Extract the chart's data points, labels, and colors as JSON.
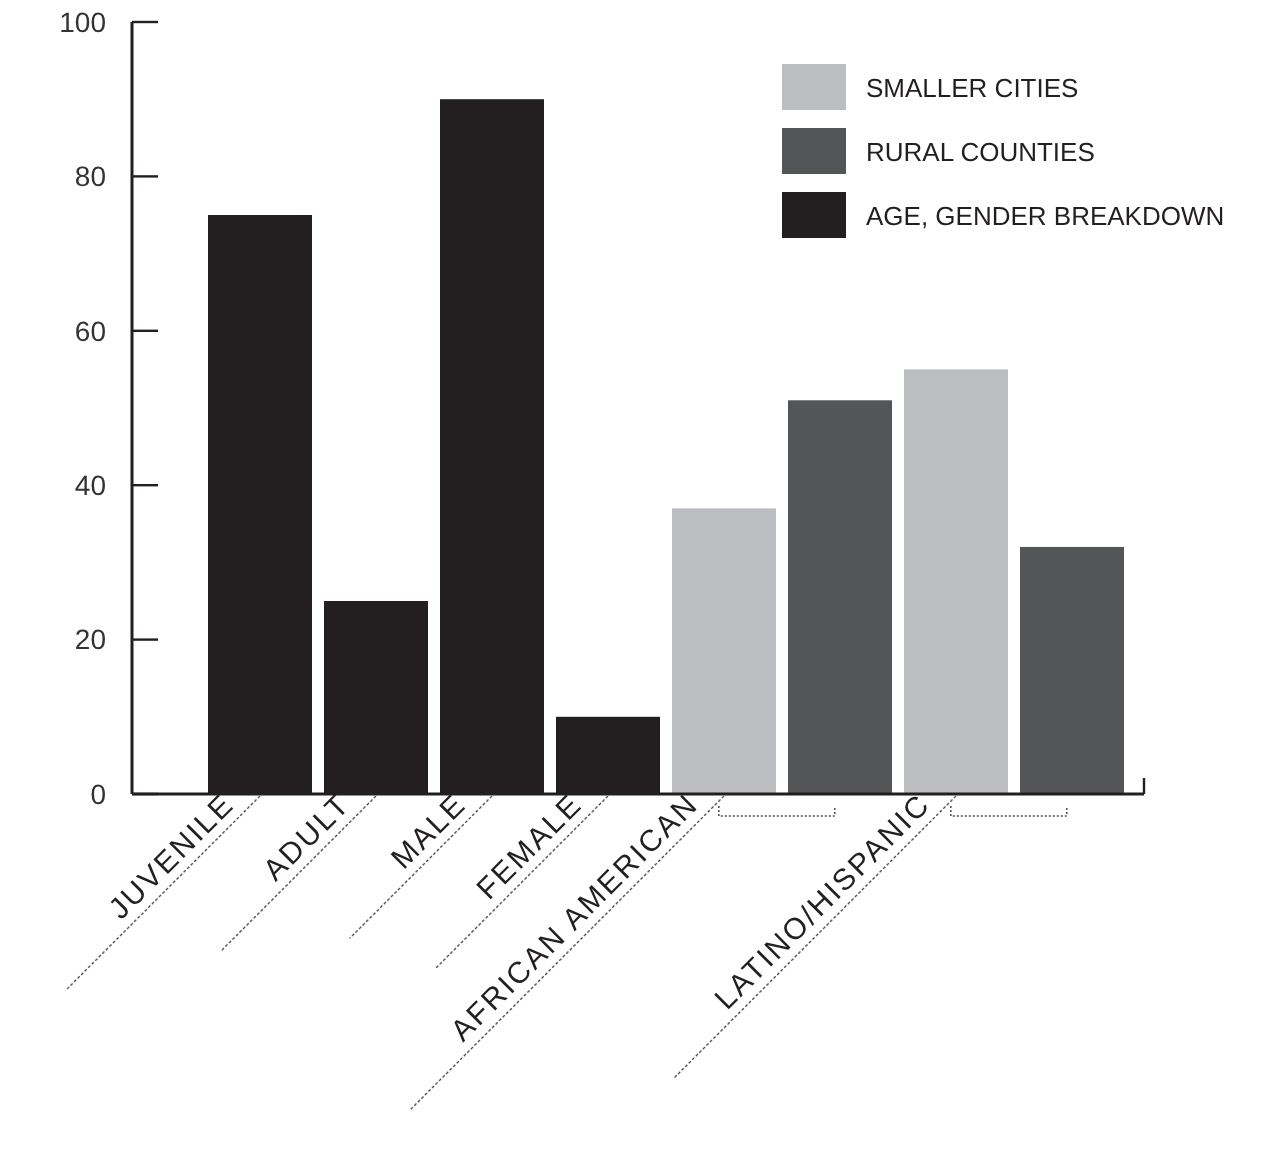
{
  "chart_data": {
    "type": "bar",
    "categories": [
      "JUVENILE",
      "ADULT",
      "MALE",
      "FEMALE",
      "AFRICAN AMERICAN",
      null,
      "LATINO/HISPANIC",
      null
    ],
    "series": [
      {
        "name": "SMALLER CITIES",
        "color": "#bcbdc0",
        "values": [
          null,
          null,
          null,
          null,
          37,
          null,
          55,
          null
        ]
      },
      {
        "name": "RURAL COUNTIES",
        "color": "#545557",
        "values": [
          null,
          null,
          null,
          null,
          null,
          51,
          null,
          32
        ]
      },
      {
        "name": "AGE, GENDER BREAKDOWN",
        "color": "#231f20",
        "values": [
          75,
          25,
          90,
          10,
          null,
          null,
          null,
          null
        ]
      }
    ],
    "ylim": [
      0,
      100
    ],
    "yticks": [
      0,
      20,
      40,
      60,
      80,
      100
    ],
    "legend": "top right"
  }
}
